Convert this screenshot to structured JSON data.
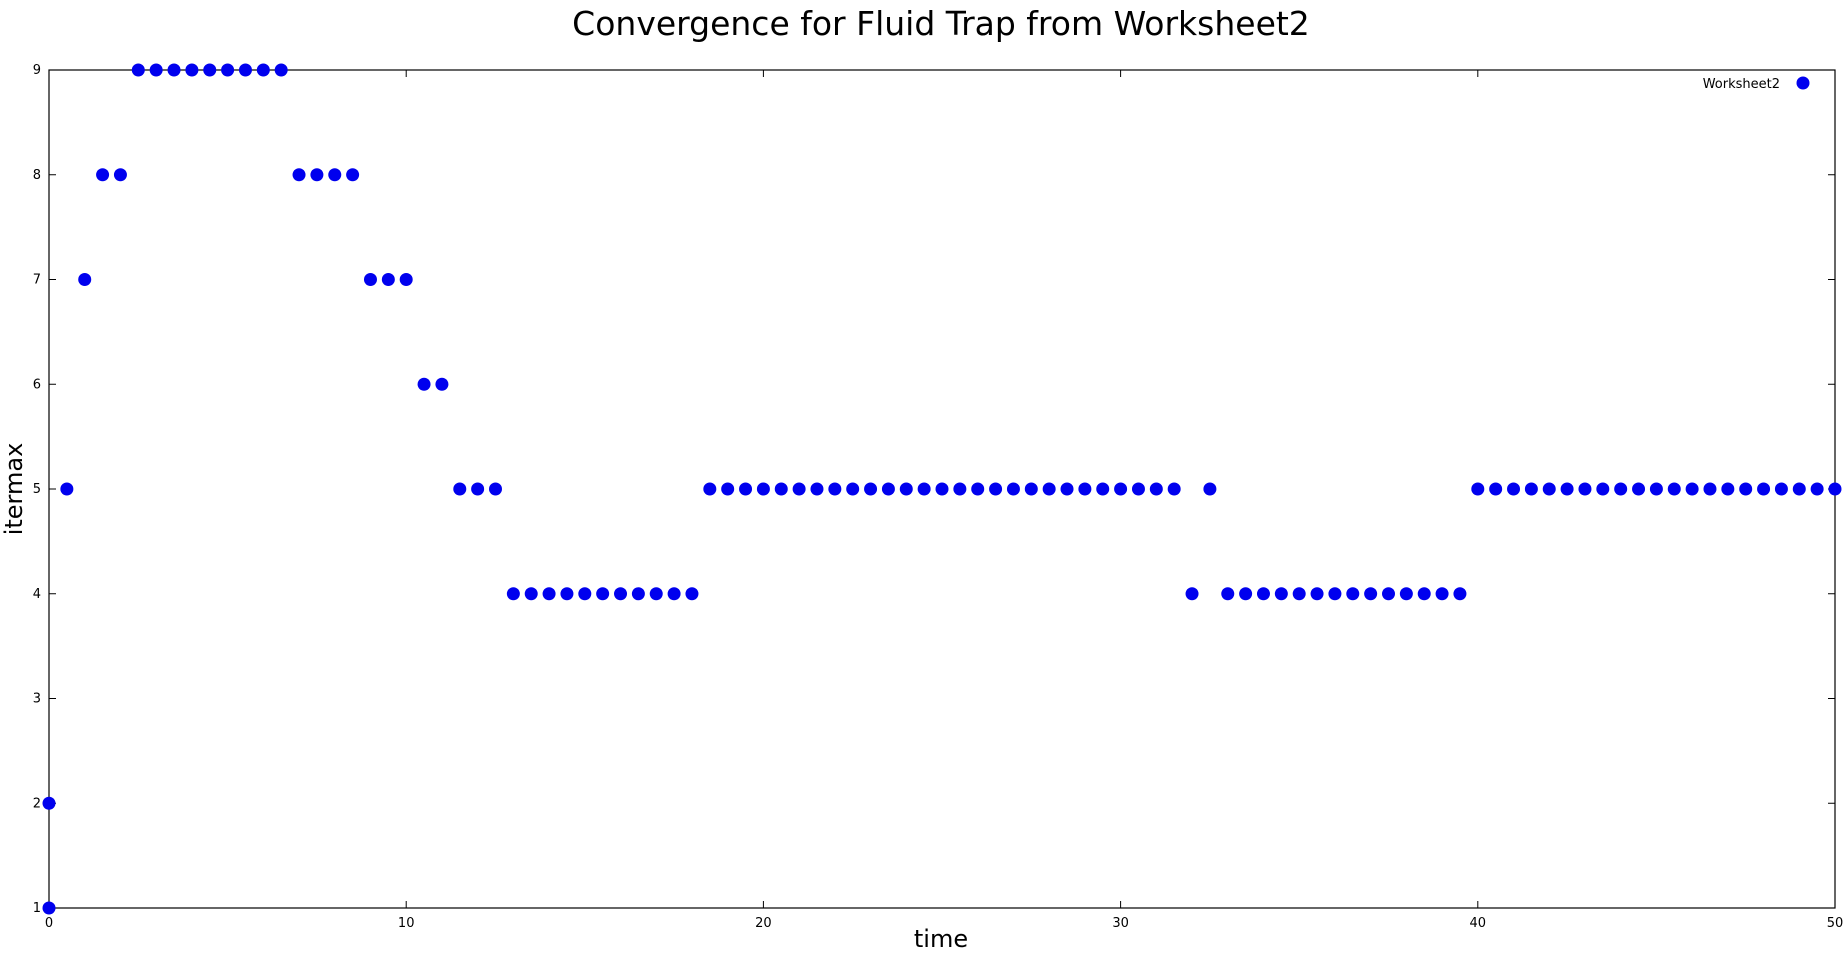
{
  "chart_data": {
    "type": "scatter",
    "title": "Convergence for Fluid Trap from Worksheet2",
    "xlabel": "time",
    "ylabel": "itermax",
    "xlim": [
      0,
      50
    ],
    "ylim": [
      1,
      9
    ],
    "xticks": [
      "0",
      "10",
      "20",
      "30",
      "40",
      "50"
    ],
    "yticks": [
      "1",
      "2",
      "3",
      "4",
      "5",
      "6",
      "7",
      "8",
      "9"
    ],
    "grid": false,
    "legend_position": "top-right",
    "series": [
      {
        "name": "Worksheet2",
        "color": "#0000ee",
        "marker": "circle",
        "points": [
          [
            0,
            1
          ],
          [
            0,
            2
          ],
          [
            0.5,
            5
          ],
          [
            1,
            7
          ],
          [
            1.5,
            8
          ],
          [
            2,
            8
          ],
          [
            2.5,
            9
          ],
          [
            3,
            9
          ],
          [
            3.5,
            9
          ],
          [
            4,
            9
          ],
          [
            4.5,
            9
          ],
          [
            5,
            9
          ],
          [
            5.5,
            9
          ],
          [
            6,
            9
          ],
          [
            6.5,
            9
          ],
          [
            7,
            8
          ],
          [
            7.5,
            8
          ],
          [
            8,
            8
          ],
          [
            8.5,
            8
          ],
          [
            9,
            7
          ],
          [
            9.5,
            7
          ],
          [
            10,
            7
          ],
          [
            10.5,
            6
          ],
          [
            11,
            6
          ],
          [
            11.5,
            5
          ],
          [
            12,
            5
          ],
          [
            12.5,
            5
          ],
          [
            13,
            4
          ],
          [
            13.5,
            4
          ],
          [
            14,
            4
          ],
          [
            14.5,
            4
          ],
          [
            15,
            4
          ],
          [
            15.5,
            4
          ],
          [
            16,
            4
          ],
          [
            16.5,
            4
          ],
          [
            17,
            4
          ],
          [
            17.5,
            4
          ],
          [
            18,
            4
          ],
          [
            18.5,
            5
          ],
          [
            19,
            5
          ],
          [
            19.5,
            5
          ],
          [
            20,
            5
          ],
          [
            20.5,
            5
          ],
          [
            21,
            5
          ],
          [
            21.5,
            5
          ],
          [
            22,
            5
          ],
          [
            22.5,
            5
          ],
          [
            23,
            5
          ],
          [
            23.5,
            5
          ],
          [
            24,
            5
          ],
          [
            24.5,
            5
          ],
          [
            25,
            5
          ],
          [
            25.5,
            5
          ],
          [
            26,
            5
          ],
          [
            26.5,
            5
          ],
          [
            27,
            5
          ],
          [
            27.5,
            5
          ],
          [
            28,
            5
          ],
          [
            28.5,
            5
          ],
          [
            29,
            5
          ],
          [
            29.5,
            5
          ],
          [
            30,
            5
          ],
          [
            30.5,
            5
          ],
          [
            31,
            5
          ],
          [
            31.5,
            5
          ],
          [
            32,
            4
          ],
          [
            32.5,
            5
          ],
          [
            33,
            4
          ],
          [
            33.5,
            4
          ],
          [
            34,
            4
          ],
          [
            34.5,
            4
          ],
          [
            35,
            4
          ],
          [
            35.5,
            4
          ],
          [
            36,
            4
          ],
          [
            36.5,
            4
          ],
          [
            37,
            4
          ],
          [
            37.5,
            4
          ],
          [
            38,
            4
          ],
          [
            38.5,
            4
          ],
          [
            39,
            4
          ],
          [
            39.5,
            4
          ],
          [
            40,
            5
          ],
          [
            40.5,
            5
          ],
          [
            41,
            5
          ],
          [
            41.5,
            5
          ],
          [
            42,
            5
          ],
          [
            42.5,
            5
          ],
          [
            43,
            5
          ],
          [
            43.5,
            5
          ],
          [
            44,
            5
          ],
          [
            44.5,
            5
          ],
          [
            45,
            5
          ],
          [
            45.5,
            5
          ],
          [
            46,
            5
          ],
          [
            46.5,
            5
          ],
          [
            47,
            5
          ],
          [
            47.5,
            5
          ],
          [
            48,
            5
          ],
          [
            48.5,
            5
          ],
          [
            49,
            5
          ],
          [
            49.5,
            5
          ],
          [
            50,
            5
          ]
        ]
      }
    ]
  }
}
